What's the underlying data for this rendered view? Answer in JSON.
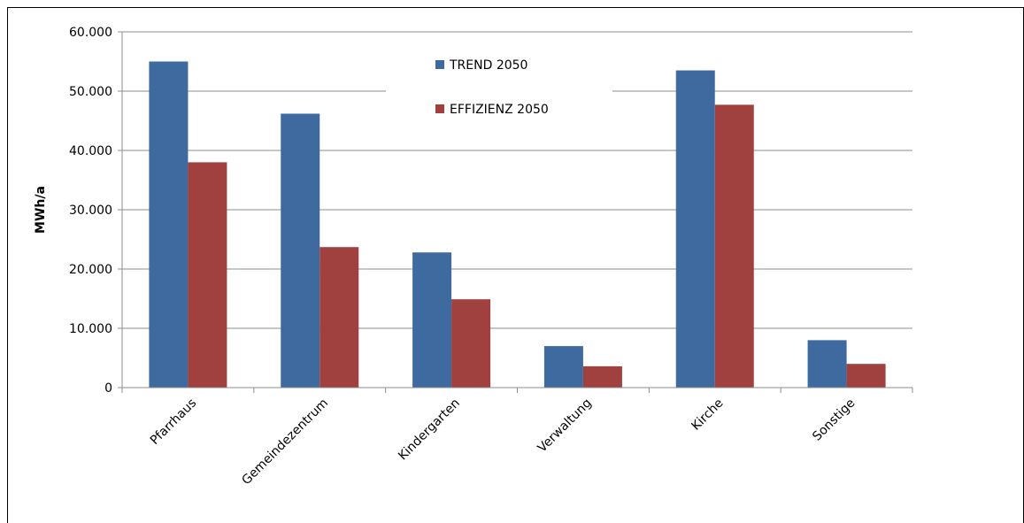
{
  "chart_data": {
    "type": "bar",
    "title": "",
    "xlabel": "",
    "ylabel": "MWh/a",
    "ylim": [
      0,
      60000
    ],
    "yticks": [
      0,
      10000,
      20000,
      30000,
      40000,
      50000,
      60000
    ],
    "ytick_labels": [
      "0",
      "10.000",
      "20.000",
      "30.000",
      "40.000",
      "50.000",
      "60.000"
    ],
    "grid": true,
    "legend_position": "top-center",
    "categories": [
      "Pfarrhaus",
      "Gemeindezentrum",
      "Kindergarten",
      "Verwaltung",
      "Kirche",
      "Sonstige"
    ],
    "series": [
      {
        "name": "TREND 2050",
        "color": "#3F6A9F",
        "values": [
          55000,
          46200,
          22800,
          7000,
          53500,
          8000
        ]
      },
      {
        "name": "EFFIZIENZ 2050",
        "color": "#A0403F",
        "values": [
          38000,
          23700,
          14900,
          3600,
          47700,
          4000
        ]
      }
    ]
  }
}
